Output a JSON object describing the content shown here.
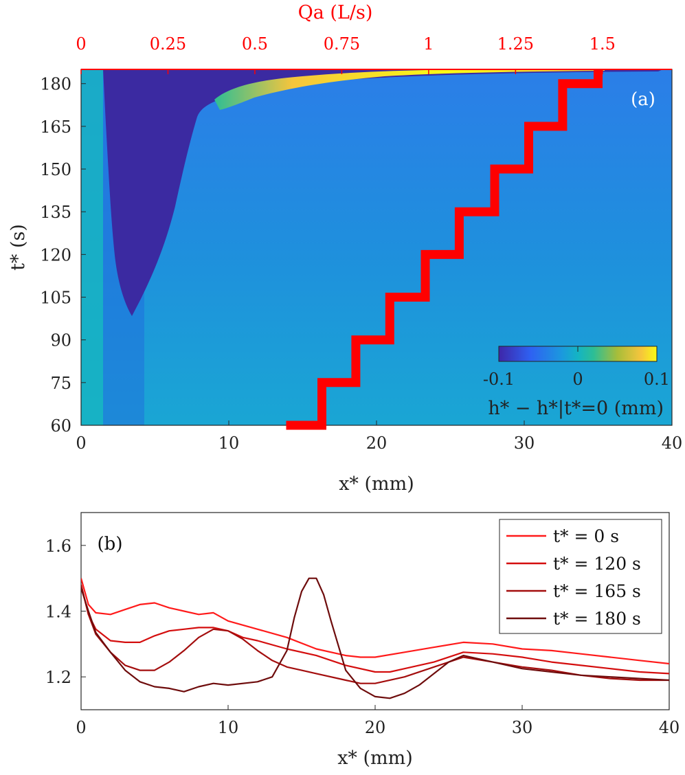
{
  "chart_data": [
    {
      "type": "heatmap",
      "panel_label": "(a)",
      "x": {
        "label": "x* (mm)",
        "lim": [
          0,
          40
        ],
        "ticks": [
          "0",
          "10",
          "20",
          "30",
          "40"
        ]
      },
      "y": {
        "label": "t* (s)",
        "lim": [
          60,
          185
        ],
        "ticks": [
          "60",
          "75",
          "90",
          "105",
          "120",
          "135",
          "150",
          "165",
          "180"
        ]
      },
      "x_top": {
        "label": "Qa (L/s)",
        "lim": [
          0,
          1.7
        ],
        "ticks": [
          "0",
          "0.25",
          "0.5",
          "0.75",
          "1",
          "1.25",
          "1.5"
        ],
        "color": "#ff0000"
      },
      "colorbar": {
        "label": "h* − h*|t*=0 (mm)",
        "lim": [
          -0.1,
          0.1
        ],
        "ticks": [
          "-0.1",
          "0",
          "0.1"
        ],
        "colormap": "parula"
      },
      "regions": {
        "background_value": 0.0,
        "trough_value": -0.1,
        "crest_value": 0.1
      },
      "staircase": {
        "color": "#ff0000",
        "t": [
          60,
          75,
          90,
          105,
          120,
          135,
          150,
          165,
          180,
          185
        ],
        "x": [
          16.3,
          18.6,
          20.9,
          23.3,
          25.6,
          28.0,
          30.3,
          32.6,
          35.0
        ]
      }
    },
    {
      "type": "line",
      "panel_label": "(b)",
      "x": {
        "label": "x* (mm)",
        "lim": [
          0,
          40
        ],
        "ticks": [
          "0",
          "10",
          "20",
          "30",
          "40"
        ]
      },
      "y": {
        "label": "",
        "lim": [
          1.1,
          1.7
        ],
        "ticks": [
          "1.2",
          "1.4",
          "1.6"
        ]
      },
      "legend_position": "top-right",
      "series": [
        {
          "name": "t* = 0 s",
          "color": "#ff1a1a",
          "x": [
            0,
            0.5,
            1,
            2,
            3,
            4,
            5,
            6,
            7,
            8,
            9,
            10,
            12,
            14,
            16,
            18,
            19,
            20,
            22,
            24,
            26,
            28,
            30,
            32,
            34,
            36,
            38,
            40
          ],
          "y": [
            1.5,
            1.42,
            1.395,
            1.39,
            1.405,
            1.42,
            1.425,
            1.41,
            1.4,
            1.39,
            1.395,
            1.37,
            1.345,
            1.32,
            1.285,
            1.265,
            1.26,
            1.26,
            1.275,
            1.29,
            1.305,
            1.3,
            1.285,
            1.28,
            1.27,
            1.26,
            1.25,
            1.24
          ]
        },
        {
          "name": "t* = 120 s",
          "color": "#d40e0e",
          "x": [
            0,
            0.5,
            1,
            2,
            3,
            4,
            5,
            6,
            7,
            8,
            9,
            10,
            11,
            12,
            14,
            16,
            18,
            20,
            21,
            22,
            24,
            26,
            28,
            30,
            32,
            34,
            36,
            38,
            40
          ],
          "y": [
            1.48,
            1.39,
            1.345,
            1.31,
            1.305,
            1.305,
            1.325,
            1.34,
            1.345,
            1.35,
            1.35,
            1.34,
            1.32,
            1.31,
            1.285,
            1.265,
            1.235,
            1.215,
            1.215,
            1.225,
            1.245,
            1.275,
            1.27,
            1.26,
            1.245,
            1.235,
            1.225,
            1.215,
            1.21
          ]
        },
        {
          "name": "t* = 165 s",
          "color": "#a30d0d",
          "x": [
            0,
            0.5,
            1,
            2,
            3,
            4,
            5,
            6,
            7,
            8,
            9,
            10,
            11,
            12,
            13,
            14,
            15,
            16,
            18,
            19,
            20,
            22,
            24,
            26,
            28,
            30,
            32,
            34,
            36,
            38,
            40
          ],
          "y": [
            1.48,
            1.39,
            1.33,
            1.275,
            1.235,
            1.22,
            1.22,
            1.245,
            1.28,
            1.32,
            1.345,
            1.34,
            1.315,
            1.28,
            1.25,
            1.23,
            1.22,
            1.21,
            1.19,
            1.18,
            1.18,
            1.2,
            1.23,
            1.26,
            1.245,
            1.23,
            1.22,
            1.205,
            1.195,
            1.19,
            1.19
          ]
        },
        {
          "name": "t* = 180 s",
          "color": "#6e0c0c",
          "x": [
            0,
            0.5,
            1,
            2,
            3,
            4,
            5,
            6,
            7,
            8,
            9,
            10,
            12,
            13,
            14,
            14.5,
            15,
            15.5,
            16,
            16.5,
            17,
            17.5,
            18,
            19,
            20,
            21,
            22,
            23,
            24,
            25,
            26,
            28,
            30,
            32,
            34,
            36,
            38,
            40
          ],
          "y": [
            1.47,
            1.4,
            1.335,
            1.275,
            1.22,
            1.185,
            1.17,
            1.165,
            1.155,
            1.17,
            1.18,
            1.175,
            1.185,
            1.2,
            1.28,
            1.38,
            1.46,
            1.5,
            1.5,
            1.45,
            1.37,
            1.295,
            1.22,
            1.165,
            1.14,
            1.135,
            1.15,
            1.175,
            1.21,
            1.245,
            1.265,
            1.245,
            1.225,
            1.215,
            1.205,
            1.2,
            1.195,
            1.19
          ]
        }
      ]
    }
  ]
}
